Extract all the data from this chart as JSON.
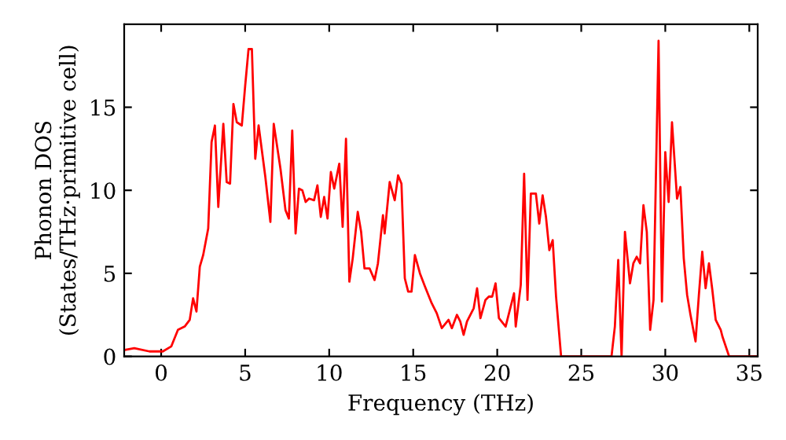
{
  "chart_data": {
    "type": "line",
    "xlabel": "Frequency (THz)",
    "ylabel": "Phonon DOS\n(States/THz·primitive cell)",
    "xlim": [
      -2.2,
      35.5
    ],
    "ylim": [
      0,
      20
    ],
    "xticks": [
      0,
      5,
      10,
      15,
      20,
      25,
      30,
      35
    ],
    "yticks": [
      0,
      5,
      10,
      15
    ],
    "grid": false,
    "legend": false,
    "marker": "none",
    "line_style": "solid",
    "series": [
      {
        "color": "#ff0000",
        "x": [
          -2.1,
          -1.6,
          -0.7,
          0.1,
          0.6,
          1.0,
          1.4,
          1.7,
          1.9,
          2.1,
          2.3,
          2.5,
          2.8,
          3.0,
          3.2,
          3.4,
          3.7,
          3.9,
          4.1,
          4.3,
          4.5,
          4.8,
          5.0,
          5.2,
          5.4,
          5.6,
          5.8,
          6.2,
          6.5,
          6.7,
          7.1,
          7.4,
          7.6,
          7.8,
          8.0,
          8.2,
          8.4,
          8.6,
          8.8,
          9.1,
          9.3,
          9.5,
          9.7,
          9.9,
          10.1,
          10.3,
          10.6,
          10.8,
          11.0,
          11.2,
          11.4,
          11.7,
          11.9,
          12.1,
          12.4,
          12.7,
          12.9,
          13.2,
          13.3,
          13.6,
          13.9,
          14.1,
          14.3,
          14.5,
          14.7,
          14.9,
          15.1,
          15.4,
          15.7,
          16.1,
          16.4,
          16.7,
          17.1,
          17.3,
          17.6,
          17.8,
          18.0,
          18.2,
          18.6,
          18.8,
          19.0,
          19.3,
          19.5,
          19.7,
          19.9,
          20.1,
          20.5,
          21.0,
          21.1,
          21.4,
          21.6,
          21.8,
          22.0,
          22.3,
          22.5,
          22.7,
          22.9,
          23.1,
          23.3,
          23.5,
          23.8,
          26.8,
          27.0,
          27.2,
          27.4,
          27.6,
          27.9,
          28.1,
          28.3,
          28.5,
          28.7,
          28.9,
          29.1,
          29.3,
          29.6,
          29.8,
          30.0,
          30.2,
          30.4,
          30.7,
          30.9,
          31.1,
          31.3,
          31.5,
          31.8,
          32.0,
          32.2,
          32.4,
          32.6,
          32.8,
          33.0,
          33.3,
          33.4,
          33.8,
          35.5
        ],
        "values": [
          0.4,
          0.5,
          0.3,
          0.3,
          0.6,
          1.6,
          1.8,
          2.2,
          3.5,
          2.7,
          5.4,
          6.1,
          7.7,
          12.9,
          13.9,
          9.0,
          14.0,
          10.5,
          10.4,
          15.2,
          14.1,
          13.9,
          16.3,
          18.5,
          18.5,
          11.9,
          13.9,
          10.8,
          8.1,
          14.0,
          11.3,
          8.8,
          8.3,
          13.6,
          7.4,
          10.1,
          10.0,
          9.3,
          9.5,
          9.4,
          10.3,
          8.4,
          9.6,
          8.3,
          11.1,
          10.1,
          11.6,
          7.8,
          13.1,
          4.5,
          5.9,
          8.7,
          7.5,
          5.3,
          5.3,
          4.6,
          5.6,
          8.5,
          7.4,
          10.5,
          9.4,
          10.9,
          10.4,
          4.7,
          3.9,
          3.9,
          6.1,
          5.0,
          4.2,
          3.2,
          2.6,
          1.7,
          2.2,
          1.7,
          2.5,
          2.1,
          1.3,
          2.1,
          2.9,
          4.1,
          2.3,
          3.4,
          3.6,
          3.6,
          4.4,
          2.3,
          1.8,
          3.8,
          1.8,
          4.3,
          11.0,
          3.4,
          9.8,
          9.8,
          8.0,
          9.7,
          8.4,
          6.4,
          7.0,
          3.6,
          0,
          0,
          1.8,
          5.8,
          0,
          7.5,
          4.4,
          5.6,
          6.0,
          5.6,
          9.1,
          7.5,
          1.6,
          3.4,
          19.0,
          3.3,
          12.3,
          9.3,
          14.1,
          9.5,
          10.2,
          5.9,
          3.7,
          2.5,
          0.9,
          3.7,
          6.3,
          4.1,
          5.6,
          4.0,
          2.2,
          1.6,
          1.2,
          0,
          0
        ]
      }
    ]
  }
}
